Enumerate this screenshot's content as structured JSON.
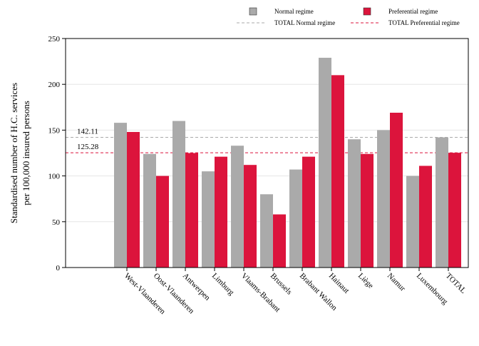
{
  "chart_data": {
    "type": "bar",
    "title": "",
    "xlabel": "",
    "ylabel": "Standardised number of H.C. services per 100,000 insured persons",
    "ylabel_lines": [
      "Standardised number of H.C. services",
      "per 100,000 insured persons"
    ],
    "ylim": [
      0,
      250
    ],
    "yticks": [
      0,
      50,
      100,
      150,
      200,
      250
    ],
    "grid": true,
    "legend_position": "top-right",
    "categories": [
      "West-Vlaanderen",
      "Oost-Vlaanderen",
      "Antwerpen",
      "Limburg",
      "Vlaams-Brabant",
      "Brussels",
      "Brabant Wallon",
      "Hainaut",
      "Liège",
      "Namur",
      "Luxembourg",
      "TOTAL"
    ],
    "series": [
      {
        "name": "Normal regime",
        "color": "#aaaaaa",
        "values": [
          158,
          124,
          160,
          105,
          133,
          80,
          107,
          229,
          140,
          150,
          100,
          142.11
        ]
      },
      {
        "name": "Preferential regime",
        "color": "#dc143c",
        "values": [
          148,
          100,
          125,
          121,
          112,
          58,
          121,
          210,
          124,
          169,
          111,
          125.28
        ]
      }
    ],
    "reference_lines": [
      {
        "name": "TOTAL Normal regime",
        "value": 142.11,
        "label": "142.11",
        "color": "#aaaaaa"
      },
      {
        "name": "TOTAL Preferential regime",
        "value": 125.28,
        "label": "125.28",
        "color": "#dc143c"
      }
    ]
  }
}
